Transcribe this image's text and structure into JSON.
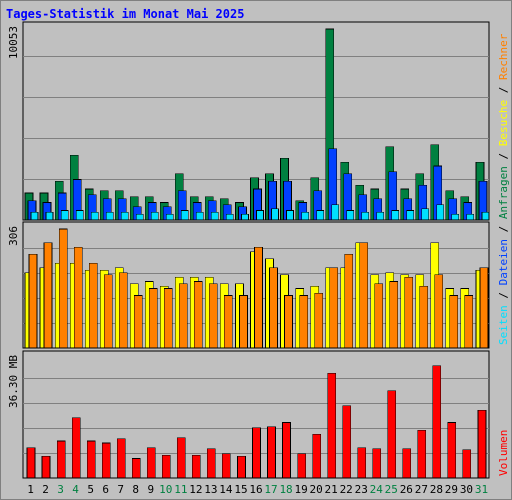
{
  "title": "Tages-Statistik im Monat Mai 2025",
  "colors": {
    "background": "#c0c0c0",
    "title": "#0000ff",
    "anfragen": "#008040",
    "dateien": "#0040ff",
    "seiten": "#00e0ff",
    "besuche": "#ffff00",
    "rechner": "#ff8000",
    "volumen": "#ff0000",
    "weekday_label": "#000000",
    "weekend_label": "#008040"
  },
  "chart_data": [
    {
      "type": "bar",
      "panel": "anfragen-dateien-seiten",
      "max_label": "10053",
      "ylim": [
        0,
        10053
      ],
      "grid": true,
      "legend": [
        "Seiten",
        "Dateien",
        "Anfragen"
      ],
      "categories": [
        "1",
        "2",
        "3",
        "4",
        "5",
        "6",
        "7",
        "8",
        "9",
        "10",
        "11",
        "12",
        "13",
        "14",
        "15",
        "16",
        "17",
        "18",
        "19",
        "20",
        "21",
        "22",
        "23",
        "24",
        "25",
        "26",
        "27",
        "28",
        "29",
        "30",
        "31"
      ],
      "series": [
        {
          "name": "Anfragen",
          "values": [
            1420,
            1420,
            2030,
            3410,
            1630,
            1530,
            1530,
            1220,
            1220,
            920,
            2440,
            1220,
            1220,
            1120,
            920,
            2230,
            2440,
            3250,
            1020,
            2230,
            10053,
            3040,
            1830,
            1630,
            3860,
            1630,
            2440,
            3960,
            1530,
            1220,
            3040
          ]
        },
        {
          "name": "Dateien",
          "values": [
            1020,
            920,
            1420,
            2130,
            1320,
            1120,
            1120,
            700,
            920,
            700,
            1530,
            920,
            1020,
            810,
            700,
            1630,
            2030,
            2030,
            920,
            1530,
            3760,
            2440,
            1320,
            1120,
            2540,
            1120,
            1830,
            2840,
            1120,
            920,
            2030
          ]
        },
        {
          "name": "Seiten",
          "values": [
            400,
            400,
            500,
            500,
            400,
            400,
            400,
            300,
            400,
            300,
            500,
            400,
            400,
            300,
            300,
            500,
            600,
            500,
            400,
            500,
            800,
            500,
            400,
            400,
            500,
            500,
            600,
            800,
            300,
            300,
            400
          ]
        }
      ]
    },
    {
      "type": "bar",
      "panel": "besuche-rechner",
      "max_label": "306",
      "ylim": [
        0,
        306
      ],
      "grid": true,
      "legend": [
        "Rechner",
        "Besuche"
      ],
      "categories": [
        "1",
        "2",
        "3",
        "4",
        "5",
        "6",
        "7",
        "8",
        "9",
        "10",
        "11",
        "12",
        "13",
        "14",
        "15",
        "16",
        "17",
        "18",
        "19",
        "20",
        "21",
        "22",
        "23",
        "24",
        "25",
        "26",
        "27",
        "28",
        "29",
        "30",
        "31"
      ],
      "series": [
        {
          "name": "Besuche",
          "values": [
            194,
            206,
            218,
            218,
            200,
            200,
            206,
            165,
            171,
            159,
            182,
            182,
            182,
            165,
            165,
            247,
            230,
            188,
            153,
            159,
            206,
            206,
            271,
            188,
            194,
            188,
            188,
            271,
            153,
            153,
            200
          ]
        },
        {
          "name": "Rechner",
          "values": [
            241,
            271,
            306,
            259,
            218,
            188,
            194,
            135,
            153,
            153,
            165,
            171,
            165,
            135,
            135,
            259,
            206,
            135,
            135,
            141,
            206,
            241,
            271,
            165,
            171,
            182,
            159,
            188,
            135,
            135,
            206
          ]
        }
      ]
    },
    {
      "type": "bar",
      "panel": "volumen",
      "max_label": "36.30 MB",
      "ylim": [
        0,
        36.3
      ],
      "grid": true,
      "legend": [
        "Volumen"
      ],
      "categories": [
        "1",
        "2",
        "3",
        "4",
        "5",
        "6",
        "7",
        "8",
        "9",
        "10",
        "11",
        "12",
        "13",
        "14",
        "15",
        "16",
        "17",
        "18",
        "19",
        "20",
        "21",
        "22",
        "23",
        "24",
        "25",
        "26",
        "27",
        "28",
        "29",
        "30",
        "31"
      ],
      "series": [
        {
          "name": "Volumen",
          "values": [
            9.2,
            6.6,
            11.2,
            18.2,
            11.2,
            10.6,
            11.9,
            5.9,
            9.2,
            6.9,
            12.2,
            6.9,
            8.9,
            7.3,
            6.6,
            15.2,
            15.5,
            16.8,
            7.3,
            13.2,
            31.7,
            21.8,
            9.2,
            8.9,
            26.4,
            8.9,
            14.5,
            34.0,
            16.8,
            8.6,
            20.5
          ]
        }
      ]
    }
  ],
  "axis": {
    "days": [
      "1",
      "2",
      "3",
      "4",
      "5",
      "6",
      "7",
      "8",
      "9",
      "10",
      "11",
      "12",
      "13",
      "14",
      "15",
      "16",
      "17",
      "18",
      "19",
      "20",
      "21",
      "22",
      "23",
      "24",
      "25",
      "26",
      "27",
      "28",
      "29",
      "30",
      "31"
    ],
    "weekend_days": [
      "3",
      "4",
      "10",
      "11",
      "17",
      "18",
      "24",
      "25",
      "31"
    ]
  }
}
